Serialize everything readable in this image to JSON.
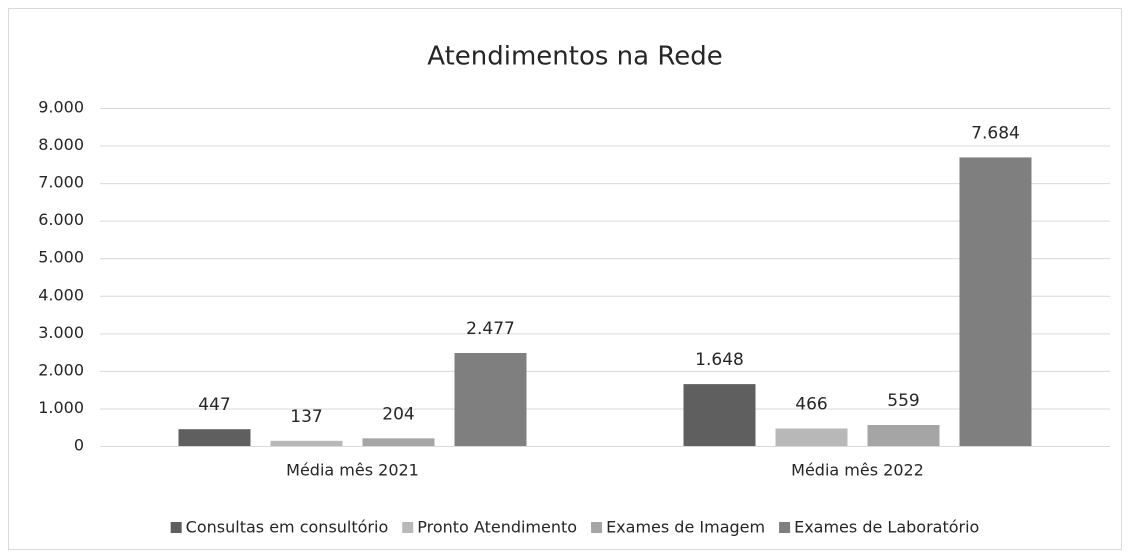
{
  "chart_data": {
    "type": "bar",
    "title": "Atendimentos na Rede",
    "categories": [
      "Média mês 2021",
      "Média mês 2022"
    ],
    "series": [
      {
        "name": "Consultas em consultório",
        "color": "#5f5f5f",
        "values": [
          447,
          1648
        ]
      },
      {
        "name": "Pronto Atendimento",
        "color": "#b8b8b8",
        "values": [
          137,
          466
        ]
      },
      {
        "name": "Exames de Imagem",
        "color": "#a5a5a5",
        "values": [
          204,
          559
        ]
      },
      {
        "name": "Exames de Laboratório",
        "color": "#7f7f7f",
        "values": [
          2477,
          7684
        ],
        "value_labels": [
          "2.477",
          "7.684"
        ]
      }
    ],
    "value_labels_first": [
      "447",
      "1.648"
    ],
    "ylim": [
      0,
      9000
    ],
    "yticks": [
      0,
      {
        "value": 1000,
        "label": "1.000"
      },
      {
        "value": 2000,
        "label": "2.000"
      },
      {
        "value": 3000,
        "label": "3.000"
      },
      {
        "value": 4000,
        "label": "4.000"
      },
      {
        "value": 5000,
        "label": "5.000"
      },
      {
        "value": 6000,
        "label": "6.000"
      },
      {
        "value": 7000,
        "label": "7.000"
      },
      {
        "value": 8000,
        "label": "8.000"
      },
      {
        "value": 9000,
        "label": "9.000"
      }
    ],
    "grid": true,
    "legend": "bottom"
  }
}
